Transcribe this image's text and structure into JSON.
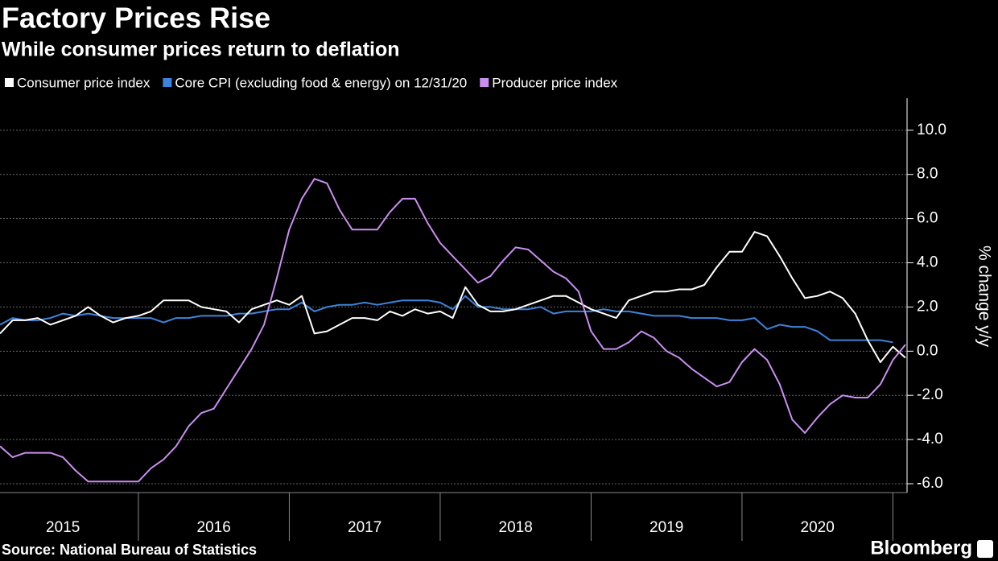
{
  "chart_data": {
    "type": "line",
    "title": "Factory Prices Rise",
    "subtitle": "While consumer prices return to deflation",
    "y_label": "% change y/y",
    "source": "Source: National Bureau of Statistics",
    "brand": "Bloomberg",
    "x": [
      2015.083,
      2015.167,
      2015.25,
      2015.333,
      2015.417,
      2015.5,
      2015.583,
      2015.667,
      2015.75,
      2015.833,
      2015.917,
      2016,
      2016.083,
      2016.167,
      2016.25,
      2016.333,
      2016.417,
      2016.5,
      2016.583,
      2016.667,
      2016.75,
      2016.833,
      2016.917,
      2017,
      2017.083,
      2017.167,
      2017.25,
      2017.333,
      2017.417,
      2017.5,
      2017.583,
      2017.667,
      2017.75,
      2017.833,
      2017.917,
      2018,
      2018.083,
      2018.167,
      2018.25,
      2018.333,
      2018.417,
      2018.5,
      2018.583,
      2018.667,
      2018.75,
      2018.833,
      2018.917,
      2019,
      2019.083,
      2019.167,
      2019.25,
      2019.333,
      2019.417,
      2019.5,
      2019.583,
      2019.667,
      2019.75,
      2019.833,
      2019.917,
      2020,
      2020.083,
      2020.167,
      2020.25,
      2020.333,
      2020.417,
      2020.5,
      2020.583,
      2020.667,
      2020.75,
      2020.833,
      2020.917,
      2021,
      2021.083
    ],
    "series": [
      {
        "name": "Consumer price index",
        "color": "#ffffff",
        "values": [
          0.8,
          1.4,
          1.4,
          1.5,
          1.2,
          1.4,
          1.6,
          2.0,
          1.6,
          1.3,
          1.5,
          1.6,
          1.8,
          2.3,
          2.3,
          2.3,
          2.0,
          1.9,
          1.8,
          1.3,
          1.9,
          2.1,
          2.3,
          2.1,
          2.5,
          0.8,
          0.9,
          1.2,
          1.5,
          1.5,
          1.4,
          1.8,
          1.6,
          1.9,
          1.7,
          1.8,
          1.5,
          2.9,
          2.1,
          1.8,
          1.8,
          1.9,
          2.1,
          2.3,
          2.5,
          2.5,
          2.2,
          1.9,
          1.7,
          1.5,
          2.3,
          2.5,
          2.7,
          2.7,
          2.8,
          2.8,
          3.0,
          3.8,
          4.5,
          4.5,
          5.4,
          5.2,
          4.3,
          3.3,
          2.4,
          2.5,
          2.7,
          2.4,
          1.7,
          0.5,
          -0.5,
          0.2,
          -0.3
        ]
      },
      {
        "name": "Core CPI (excluding food & energy) on 12/31/20",
        "color": "#3d84dc",
        "values": [
          1.2,
          1.5,
          1.4,
          1.4,
          1.5,
          1.7,
          1.6,
          1.7,
          1.6,
          1.5,
          1.5,
          1.5,
          1.5,
          1.3,
          1.5,
          1.5,
          1.6,
          1.6,
          1.6,
          1.7,
          1.7,
          1.8,
          1.9,
          1.9,
          2.2,
          1.8,
          2.0,
          2.1,
          2.1,
          2.2,
          2.1,
          2.2,
          2.3,
          2.3,
          2.3,
          2.2,
          1.9,
          2.5,
          2.0,
          2.0,
          1.9,
          1.9,
          1.9,
          2.0,
          1.7,
          1.8,
          1.8,
          1.8,
          1.9,
          1.8,
          1.8,
          1.7,
          1.6,
          1.6,
          1.6,
          1.5,
          1.5,
          1.5,
          1.4,
          1.4,
          1.5,
          1.0,
          1.2,
          1.1,
          1.1,
          0.9,
          0.5,
          0.5,
          0.5,
          0.5,
          0.5,
          0.4,
          null
        ]
      },
      {
        "name": "Producer price index",
        "color": "#c98ef2",
        "values": [
          -4.3,
          -4.8,
          -4.6,
          -4.6,
          -4.6,
          -4.8,
          -5.4,
          -5.9,
          -5.9,
          -5.9,
          -5.9,
          -5.9,
          -5.3,
          -4.9,
          -4.3,
          -3.4,
          -2.8,
          -2.6,
          -1.7,
          -0.8,
          0.1,
          1.2,
          3.3,
          5.5,
          6.9,
          7.8,
          7.6,
          6.4,
          5.5,
          5.5,
          5.5,
          6.3,
          6.9,
          6.9,
          5.8,
          4.9,
          4.3,
          3.7,
          3.1,
          3.4,
          4.1,
          4.7,
          4.6,
          4.1,
          3.6,
          3.3,
          2.7,
          0.9,
          0.1,
          0.1,
          0.4,
          0.9,
          0.6,
          0.0,
          -0.3,
          -0.8,
          -1.2,
          -1.6,
          -1.4,
          -0.5,
          0.1,
          -0.4,
          -1.5,
          -3.1,
          -3.7,
          -3.0,
          -2.4,
          -2.0,
          -2.1,
          -2.1,
          -1.5,
          -0.4,
          0.3
        ]
      }
    ],
    "xlim": [
      2015.083,
      2021.083
    ],
    "xticks": [
      {
        "value": 2015.5,
        "label": "2015"
      },
      {
        "value": 2016.5,
        "label": "2016"
      },
      {
        "value": 2017.5,
        "label": "2017"
      },
      {
        "value": 2018.5,
        "label": "2018"
      },
      {
        "value": 2019.5,
        "label": "2019"
      },
      {
        "value": 2020.5,
        "label": "2020"
      }
    ],
    "xseparators": [
      2016,
      2017,
      2018,
      2019,
      2020,
      2021
    ],
    "ylim": [
      -6.4,
      11.45
    ],
    "yticks": [
      {
        "value": -6,
        "label": "-6.0"
      },
      {
        "value": -4,
        "label": "-4.0"
      },
      {
        "value": -2,
        "label": "-2.0"
      },
      {
        "value": 0,
        "label": "0.0"
      },
      {
        "value": 2,
        "label": "2.0"
      },
      {
        "value": 4,
        "label": "4.0"
      },
      {
        "value": 6,
        "label": "6.0"
      },
      {
        "value": 8,
        "label": "8.0"
      },
      {
        "value": 10,
        "label": "10.0"
      }
    ],
    "grid": true
  }
}
